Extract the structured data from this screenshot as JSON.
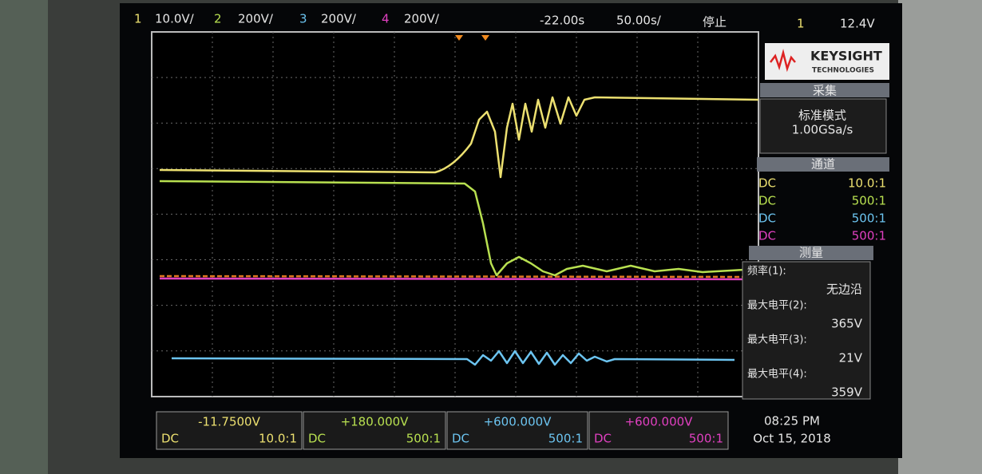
{
  "top_bar": {
    "ch1": {
      "num": "1",
      "scale": "10.0V/"
    },
    "ch2": {
      "num": "2",
      "scale": "200V/"
    },
    "ch3": {
      "num": "3",
      "scale": "200V/"
    },
    "ch4": {
      "num": "4",
      "scale": "200V/"
    },
    "delay": "-22.00s",
    "timebase": "50.00s/",
    "status": "停止",
    "trigger_source": "1",
    "trigger_level": "12.4V"
  },
  "logo": {
    "brand": "KEYSIGHT",
    "sub": "TECHNOLOGIES"
  },
  "acquire": {
    "header": "采集",
    "mode": "标准模式",
    "rate": "1.00GSa/s"
  },
  "channels": {
    "header": "通道",
    "rows": [
      [
        "DC",
        "10.0:1"
      ],
      [
        "DC",
        "500:1"
      ],
      [
        "DC",
        "500:1"
      ],
      [
        "DC",
        "500:1"
      ]
    ]
  },
  "measure": {
    "header": "测量",
    "items": [
      {
        "label": "频率(1):",
        "value": "无边沿"
      },
      {
        "label": "最大电平(2):",
        "value": "365V"
      },
      {
        "label": "最大电平(3):",
        "value": "21V"
      },
      {
        "label": "最大电平(4):",
        "value": "359V"
      }
    ]
  },
  "offsets": [
    {
      "offset": "-11.7500V",
      "coupling": "DC",
      "probe": "10.0:1"
    },
    {
      "offset": "+180.000V",
      "coupling": "DC",
      "probe": "500:1"
    },
    {
      "offset": "+600.000V",
      "coupling": "DC",
      "probe": "500:1"
    },
    {
      "offset": "+600.000V",
      "coupling": "DC",
      "probe": "500:1"
    }
  ],
  "clock": {
    "time": "08:25 PM",
    "date": "Oct 15, 2018"
  }
}
